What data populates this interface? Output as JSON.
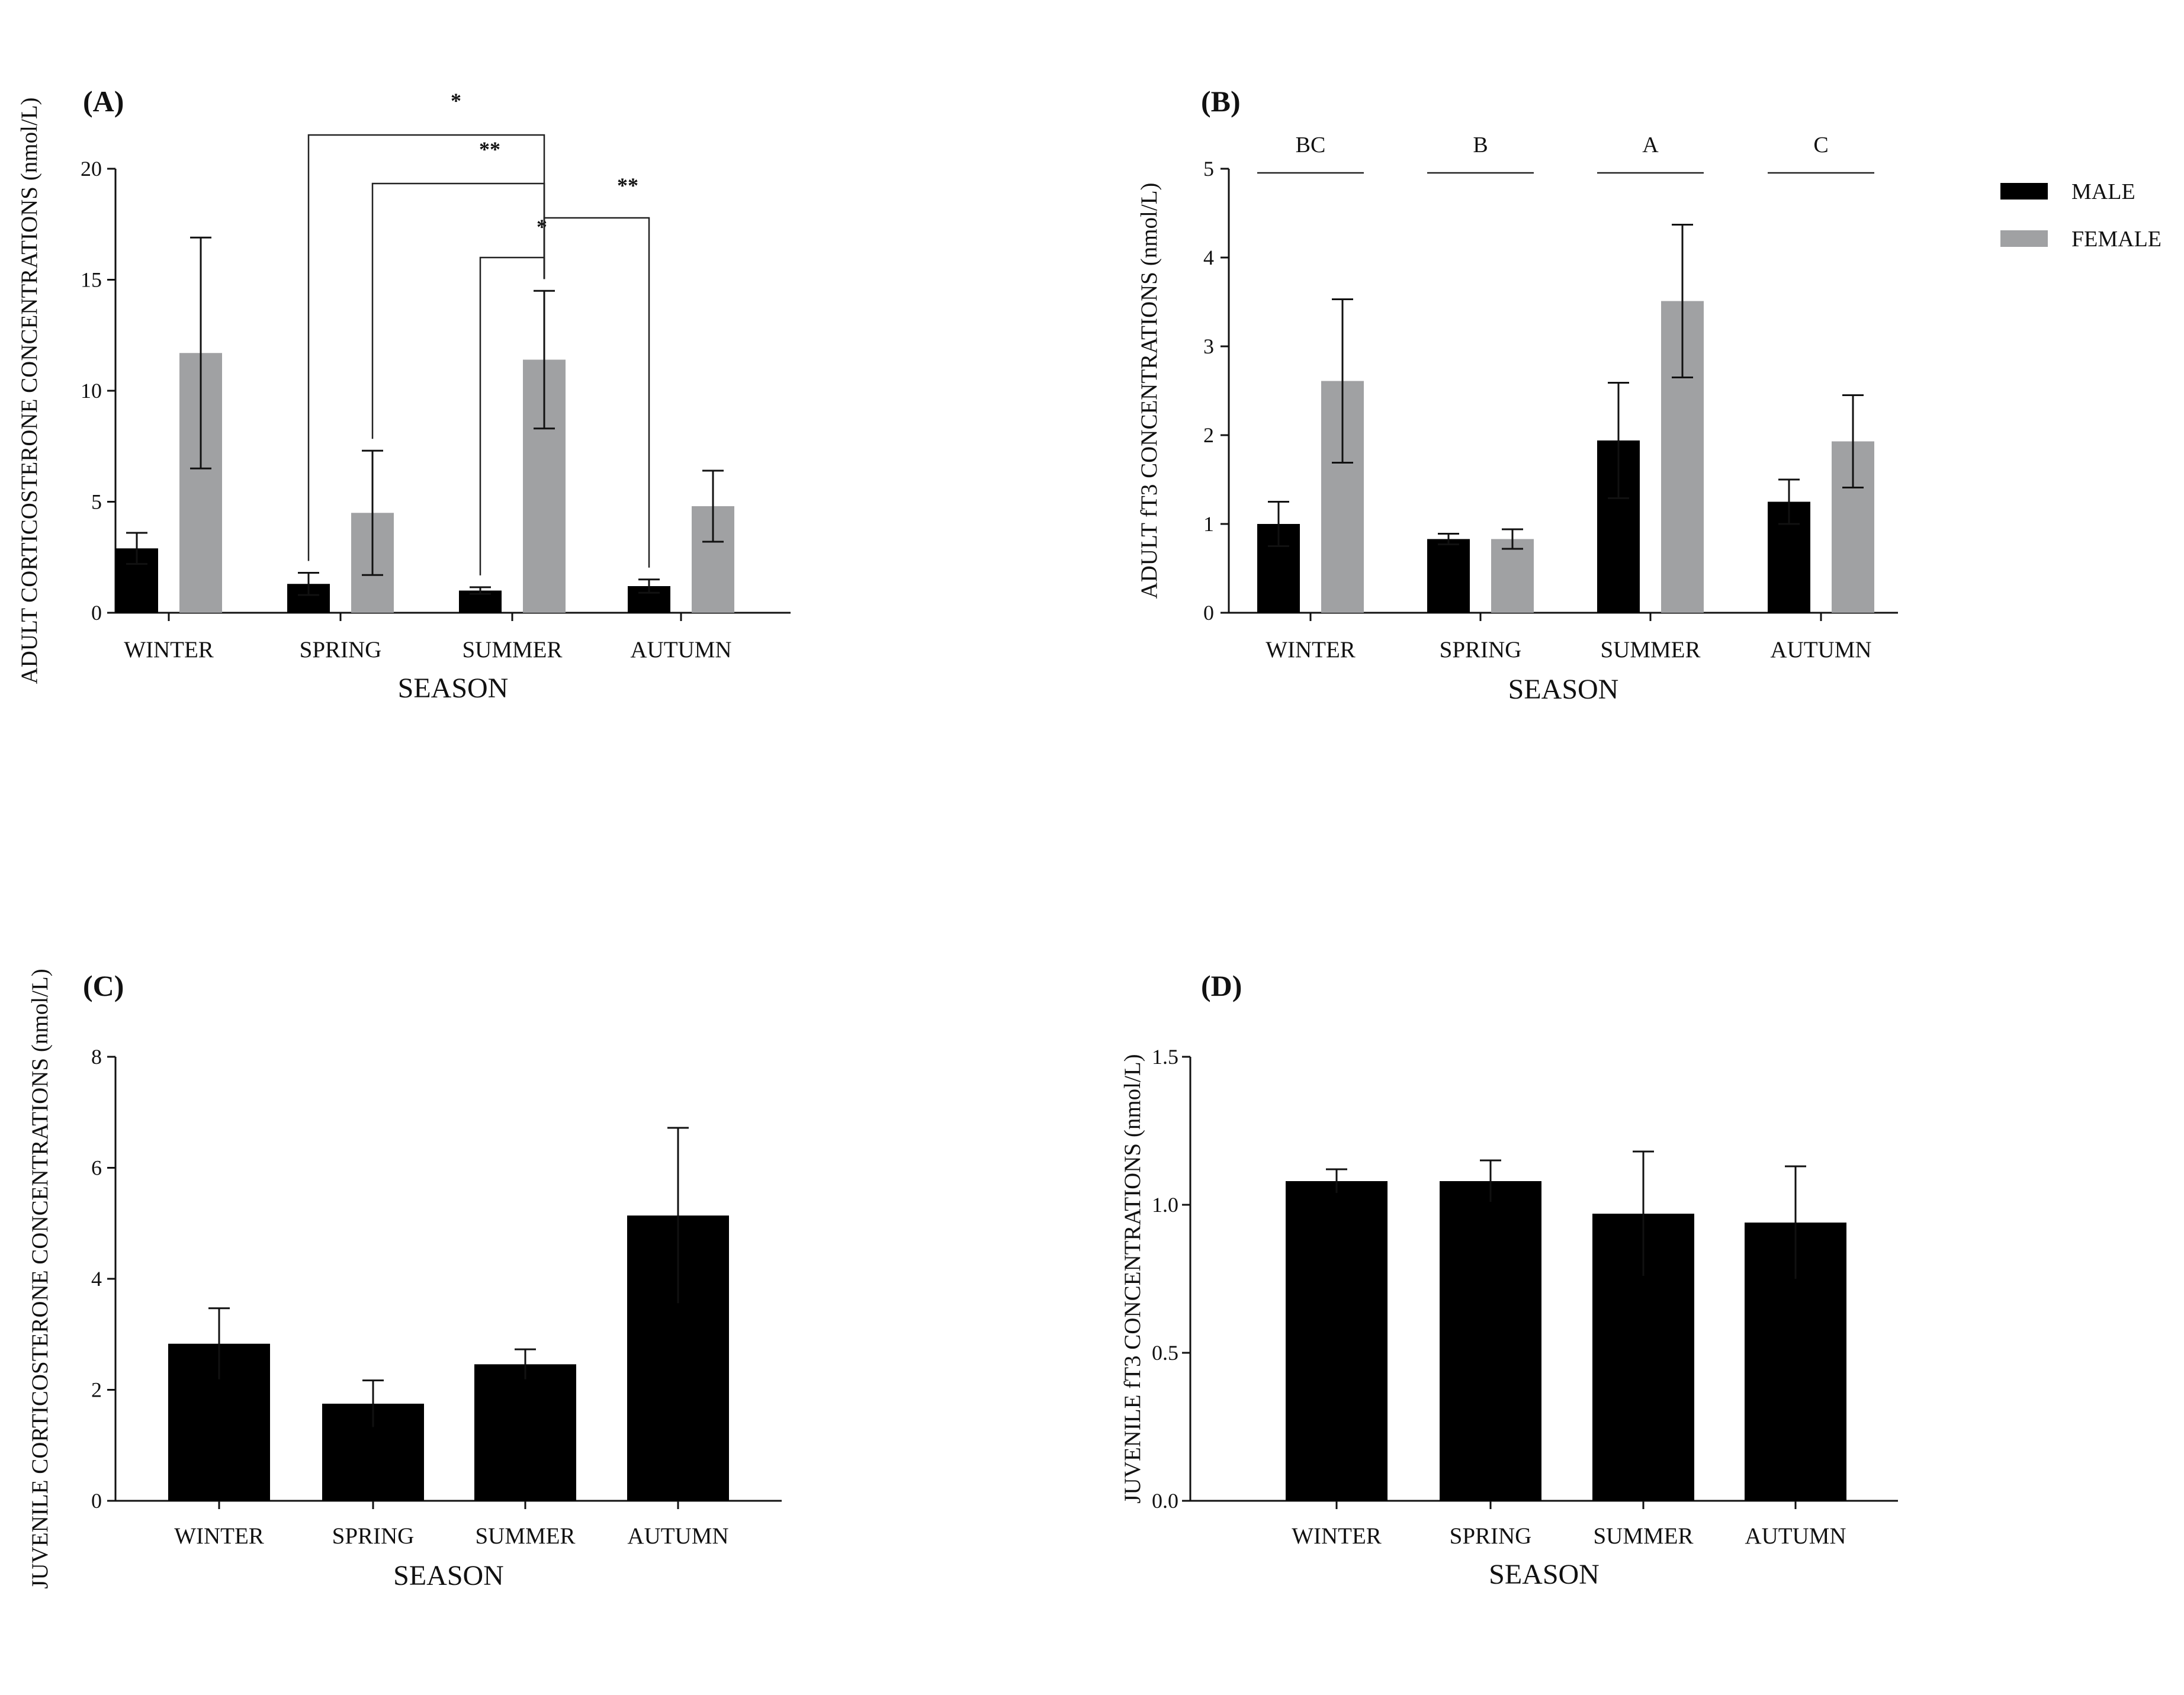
{
  "colors": {
    "male": "#000000",
    "female": "#a0a1a3",
    "axis": "#111111"
  },
  "legend": [
    {
      "key": "male",
      "label": "MALE"
    },
    {
      "key": "female",
      "label": "FEMALE"
    }
  ],
  "chart_data": [
    {
      "id": "A",
      "type": "bar",
      "panel_label": "(A)",
      "title": "",
      "xlabel": "SEASON",
      "ylabel": "ADULT CORTICOSTERONE CONCENTRATIONS (nmol/L)",
      "ylim": [
        0,
        20
      ],
      "yticks": [
        "0",
        "5",
        "10",
        "15",
        "20"
      ],
      "categories": [
        "WINTER",
        "SPRING",
        "SUMMER",
        "AUTUMN"
      ],
      "series": [
        {
          "name": "MALE",
          "color_key": "male",
          "values": [
            2.9,
            1.3,
            1.0,
            1.2
          ],
          "errors": [
            0.7,
            0.5,
            0.15,
            0.3
          ]
        },
        {
          "name": "FEMALE",
          "color_key": "female",
          "values": [
            11.7,
            4.5,
            11.4,
            4.8
          ],
          "errors": [
            5.2,
            2.8,
            3.1,
            1.6
          ]
        }
      ],
      "significance": [
        {
          "from": "SPRING MALE",
          "to": "SUMMER FEMALE",
          "label": "*"
        },
        {
          "from": "SPRING FEMALE",
          "to": "SUMMER FEMALE",
          "label": "**"
        },
        {
          "from": "SUMMER MALE",
          "to": "SUMMER FEMALE",
          "label": "*"
        },
        {
          "from": "SUMMER FEMALE",
          "to": "AUTUMN MALE",
          "label": "**"
        }
      ]
    },
    {
      "id": "B",
      "type": "bar",
      "panel_label": "(B)",
      "title": "",
      "xlabel": "SEASON",
      "ylabel": "ADULT fT3 CONCENTRATIONS (nmol/L)",
      "ylim": [
        0,
        5
      ],
      "yticks": [
        "0",
        "1",
        "2",
        "3",
        "4",
        "5"
      ],
      "categories": [
        "WINTER",
        "SPRING",
        "SUMMER",
        "AUTUMN"
      ],
      "series": [
        {
          "name": "MALE",
          "color_key": "male",
          "values": [
            1.0,
            0.83,
            1.94,
            1.25
          ],
          "errors": [
            0.25,
            0.06,
            0.65,
            0.25
          ]
        },
        {
          "name": "FEMALE",
          "color_key": "female",
          "values": [
            2.61,
            0.83,
            3.51,
            1.93
          ],
          "errors": [
            0.92,
            0.11,
            0.86,
            0.52
          ]
        }
      ],
      "group_letters": [
        "BC",
        "B",
        "A",
        "C"
      ]
    },
    {
      "id": "C",
      "type": "bar",
      "panel_label": "(C)",
      "title": "",
      "xlabel": "SEASON",
      "ylabel": "JUVENILE CORTICOSTERONE CONCENTRATIONS (nmol/L)",
      "ylim": [
        0,
        8
      ],
      "yticks": [
        "0",
        "2",
        "4",
        "6",
        "8"
      ],
      "categories": [
        "WINTER",
        "SPRING",
        "SUMMER",
        "AUTUMN"
      ],
      "series": [
        {
          "name": "JUVENILE",
          "color_key": "male",
          "values": [
            2.83,
            1.75,
            2.46,
            5.14
          ],
          "errors": [
            0.64,
            0.42,
            0.27,
            1.58
          ]
        }
      ]
    },
    {
      "id": "D",
      "type": "bar",
      "panel_label": "(D)",
      "title": "",
      "xlabel": "SEASON",
      "ylabel": "JUVENILE fT3 CONCENTRATIONS (nmol/L)",
      "ylim": [
        0,
        1.5
      ],
      "yticks": [
        "0.0",
        "0.5",
        "1.0",
        "1.5"
      ],
      "categories": [
        "WINTER",
        "SPRING",
        "SUMMER",
        "AUTUMN"
      ],
      "series": [
        {
          "name": "JUVENILE",
          "color_key": "male",
          "values": [
            1.08,
            1.08,
            0.97,
            0.94
          ],
          "errors": [
            0.04,
            0.07,
            0.21,
            0.19
          ]
        }
      ]
    }
  ]
}
